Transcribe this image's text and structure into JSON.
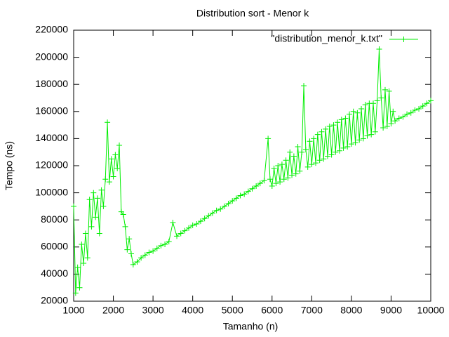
{
  "chart_data": {
    "type": "line",
    "title": "Distribution sort - Menor k",
    "x_label": "Tamanho (n)",
    "y_label": "Tempo (ns)",
    "x": [
      1000,
      1050,
      1100,
      1150,
      1200,
      1250,
      1300,
      1350,
      1400,
      1450,
      1500,
      1550,
      1600,
      1650,
      1700,
      1750,
      1800,
      1850,
      1900,
      1950,
      2000,
      2050,
      2100,
      2150,
      2200,
      2250,
      2300,
      2350,
      2400,
      2450,
      2500,
      2600,
      2700,
      2800,
      2900,
      3000,
      3100,
      3200,
      3300,
      3400,
      3500,
      3600,
      3700,
      3800,
      3900,
      4000,
      4100,
      4200,
      4300,
      4400,
      4500,
      4600,
      4700,
      4800,
      4900,
      5000,
      5100,
      5200,
      5300,
      5400,
      5500,
      5600,
      5700,
      5800,
      5900,
      5950,
      6000,
      6050,
      6100,
      6150,
      6200,
      6250,
      6300,
      6350,
      6400,
      6450,
      6500,
      6550,
      6600,
      6650,
      6700,
      6750,
      6800,
      6850,
      6900,
      6950,
      7000,
      7050,
      7100,
      7150,
      7200,
      7250,
      7300,
      7350,
      7400,
      7450,
      7500,
      7550,
      7600,
      7650,
      7700,
      7750,
      7800,
      7850,
      7900,
      7950,
      8000,
      8050,
      8100,
      8150,
      8200,
      8250,
      8300,
      8350,
      8400,
      8450,
      8500,
      8550,
      8600,
      8650,
      8700,
      8750,
      8800,
      8850,
      8900,
      8950,
      9000,
      9050,
      9100,
      9200,
      9300,
      9400,
      9500,
      9600,
      9700,
      9800,
      9900,
      10000
    ],
    "series": [
      {
        "name": "\"distribution_menor_k.txt\"",
        "color": "#00ee00",
        "values": [
          90000,
          26000,
          45000,
          30000,
          62000,
          48000,
          70000,
          52000,
          95000,
          75000,
          100000,
          82000,
          96000,
          70000,
          102000,
          90000,
          110000,
          152000,
          108000,
          125000,
          112000,
          128000,
          118000,
          135000,
          86000,
          84000,
          75000,
          58000,
          66000,
          55000,
          47000,
          49000,
          52000,
          54000,
          56000,
          57000,
          59000,
          61000,
          62000,
          64000,
          78000,
          68000,
          70000,
          72000,
          74000,
          76000,
          77000,
          79000,
          81000,
          83000,
          85000,
          87000,
          88000,
          90000,
          92000,
          94000,
          96000,
          98000,
          99000,
          101000,
          103000,
          105000,
          107000,
          109000,
          140000,
          110000,
          105000,
          118000,
          107000,
          120000,
          108000,
          121000,
          110000,
          124000,
          111000,
          130000,
          113000,
          127000,
          114000,
          134000,
          116000,
          130000,
          179000,
          132000,
          119000,
          138000,
          121000,
          140000,
          122000,
          143000,
          124000,
          145000,
          125000,
          147000,
          127000,
          149000,
          128000,
          150000,
          130000,
          152000,
          131000,
          154000,
          133000,
          155000,
          134000,
          158000,
          136000,
          160000,
          137000,
          159000,
          139000,
          162000,
          140000,
          165000,
          142000,
          166000,
          143000,
          166000,
          145000,
          168000,
          206000,
          170000,
          148000,
          176000,
          149000,
          175000,
          151000,
          160000,
          153000,
          155000,
          156000,
          158000,
          159000,
          161000,
          162000,
          164000,
          166000,
          168000
        ]
      }
    ],
    "xlim": [
      1000,
      10000
    ],
    "xticks": [
      1000,
      2000,
      3000,
      4000,
      5000,
      6000,
      7000,
      8000,
      9000,
      10000
    ],
    "ylim": [
      20000,
      220000
    ],
    "yticks": [
      20000,
      40000,
      60000,
      80000,
      100000,
      120000,
      140000,
      160000,
      180000,
      200000,
      220000
    ],
    "grid": false,
    "legend": "top-right"
  }
}
